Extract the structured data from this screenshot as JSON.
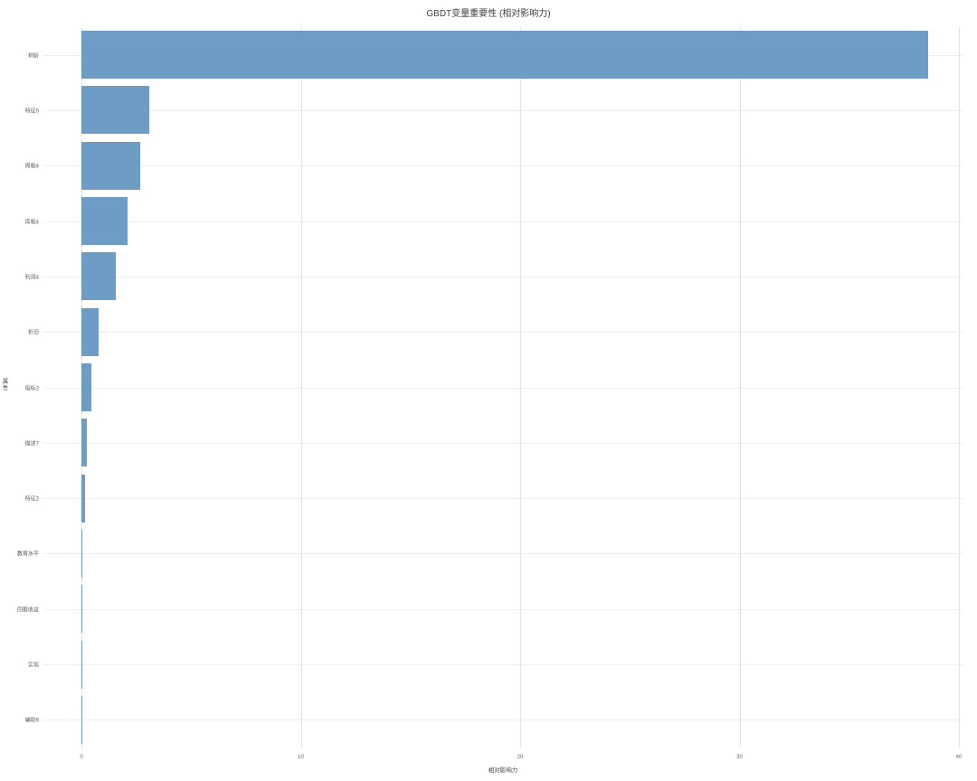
{
  "chart_data": {
    "type": "bar",
    "orientation": "horizontal",
    "title": "GBDT变量重要性 (相对影响力)",
    "xlabel": "相对影响力",
    "ylabel": "属性",
    "categories": [
      "树龄",
      "特征5",
      "周租4",
      "房租4",
      "利润4",
      "折旧",
      "指标2",
      "描述7",
      "特征2",
      "教育水平",
      "回报收益",
      "实现",
      "辅助9"
    ],
    "values": [
      38.6,
      3.1,
      2.7,
      2.1,
      1.55,
      0.8,
      0.45,
      0.24,
      0.18,
      0.06,
      0.05,
      0.05,
      0.015
    ],
    "xlim": [
      0,
      40
    ],
    "xticks": [
      0,
      10,
      20,
      30,
      40
    ],
    "grid": true,
    "legend_position": "none",
    "colors": {
      "bar": "#6d9dc5",
      "grid_vertical": "#e3e3e3",
      "grid_horizontal": "#ededed",
      "title_text": "#3d3d3d",
      "tick_text": "#666666"
    }
  }
}
